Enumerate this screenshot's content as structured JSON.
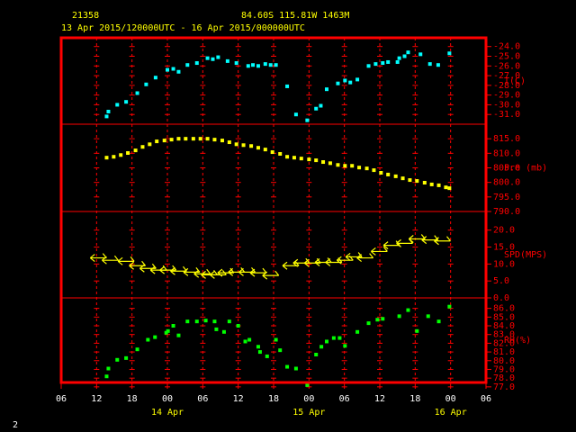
{
  "header": {
    "station": "21358",
    "location": "84.60S  115.81W  1463M",
    "period": "13 Apr 2015/120000UTC - 16 Apr 2015/000000UTC",
    "page": "2"
  },
  "x_axis": {
    "xlim": [
      0,
      72
    ],
    "xticks": [
      {
        "value": 0,
        "label": "06"
      },
      {
        "value": 6,
        "label": "12"
      },
      {
        "value": 12,
        "label": "18"
      },
      {
        "value": 18,
        "label": "00"
      },
      {
        "value": 24,
        "label": "06"
      },
      {
        "value": 30,
        "label": "12"
      },
      {
        "value": 36,
        "label": "18"
      },
      {
        "value": 42,
        "label": "00"
      },
      {
        "value": 48,
        "label": "06"
      },
      {
        "value": 54,
        "label": "12"
      },
      {
        "value": 60,
        "label": "18"
      },
      {
        "value": 66,
        "label": "00"
      },
      {
        "value": 72,
        "label": "06"
      }
    ],
    "date_labels": [
      {
        "value": 18,
        "label": "14 Apr"
      },
      {
        "value": 42,
        "label": "15 Apr"
      },
      {
        "value": 66,
        "label": "16 Apr"
      }
    ]
  },
  "chart_data": [
    {
      "type": "scatter",
      "ylabel": "T(C)",
      "color": "#00ffff",
      "ylim": [
        -32,
        -23.1
      ],
      "yticks": [
        {
          "value": -24,
          "label": "-24.0"
        },
        {
          "value": -25,
          "label": "-25.0"
        },
        {
          "value": -26,
          "label": "-26.0"
        },
        {
          "value": -27,
          "label": "-27.0"
        },
        {
          "value": -28,
          "label": "-28.0"
        },
        {
          "value": -29,
          "label": "-29.0"
        },
        {
          "value": -30,
          "label": "-30.0"
        },
        {
          "value": -31,
          "label": "-31.0"
        }
      ],
      "x": [
        7.7,
        8.0,
        9.5,
        11.0,
        12.9,
        14.4,
        16.0,
        18.0,
        19.0,
        19.9,
        21.4,
        23.0,
        24.8,
        25.7,
        26.6,
        28.2,
        29.7,
        31.7,
        32.5,
        33.4,
        34.6,
        35.5,
        36.4,
        38.3,
        39.8,
        41.7,
        43.2,
        44.0,
        45.0,
        46.9,
        48.1,
        49.0,
        50.2,
        52.1,
        53.3,
        54.5,
        55.4,
        57.0,
        57.3,
        58.2,
        58.8,
        60.9,
        62.5,
        63.9,
        65.8
      ],
      "values": [
        -31.2,
        -30.7,
        -30.0,
        -29.7,
        -28.8,
        -27.9,
        -27.2,
        -26.4,
        -26.3,
        -26.6,
        -25.9,
        -25.7,
        -25.2,
        -25.3,
        -25.1,
        -25.5,
        -25.7,
        -26.0,
        -25.9,
        -26.0,
        -25.8,
        -25.9,
        -25.9,
        -28.1,
        -31.0,
        -31.6,
        -30.4,
        -30.1,
        -28.4,
        -27.8,
        -27.5,
        -27.7,
        -27.4,
        -26.0,
        -25.8,
        -25.7,
        -25.6,
        -25.6,
        -25.2,
        -25.0,
        -24.6,
        -24.8,
        -25.8,
        -25.9,
        -24.7
      ]
    },
    {
      "type": "scatter",
      "ylabel": "Pre (mb)",
      "color": "#ffff00",
      "ylim": [
        790,
        820
      ],
      "yticks": [
        {
          "value": 790,
          "label": "790.0"
        },
        {
          "value": 795,
          "label": "795.0"
        },
        {
          "value": 800,
          "label": "800.0"
        },
        {
          "value": 805,
          "label": "805.0"
        },
        {
          "value": 810,
          "label": "810.0"
        },
        {
          "value": 815,
          "label": "815.0"
        }
      ],
      "x": [
        7.7,
        8.9,
        10.1,
        11.3,
        12.6,
        13.8,
        15.0,
        16.2,
        17.5,
        18.7,
        19.9,
        21.1,
        22.4,
        23.6,
        24.8,
        26.0,
        27.3,
        28.5,
        29.7,
        30.9,
        32.2,
        33.4,
        34.6,
        35.8,
        37.1,
        38.3,
        39.5,
        40.7,
        42.0,
        43.2,
        44.4,
        45.6,
        46.9,
        48.1,
        49.3,
        50.5,
        51.8,
        53.0,
        54.2,
        55.4,
        56.7,
        57.9,
        59.1,
        60.3,
        61.6,
        62.8,
        64.0,
        65.2,
        65.8
      ],
      "values": [
        808.5,
        808.8,
        809.4,
        810.1,
        811.0,
        812.2,
        813.1,
        814.1,
        814.4,
        814.7,
        815.0,
        815.0,
        815.0,
        815.0,
        815.0,
        814.7,
        814.4,
        813.8,
        813.1,
        812.8,
        812.5,
        811.9,
        811.3,
        810.4,
        809.8,
        808.8,
        808.5,
        808.2,
        807.9,
        807.6,
        807.0,
        806.6,
        806.0,
        805.7,
        805.7,
        805.1,
        804.8,
        804.2,
        803.3,
        802.7,
        802.1,
        801.4,
        800.8,
        800.5,
        799.9,
        799.3,
        799.0,
        798.3,
        798.0
      ]
    },
    {
      "type": "barb",
      "ylabel": "SPD(MPS)",
      "color": "#ffff00",
      "ylim": [
        0,
        25.5
      ],
      "yticks": [
        {
          "value": 0,
          "label": "0.0"
        },
        {
          "value": 5,
          "label": "5.0"
        },
        {
          "value": 10,
          "label": "10.0"
        },
        {
          "value": 15,
          "label": "15.0"
        },
        {
          "value": 20,
          "label": "20.0"
        }
      ],
      "x": [
        6.3,
        8.3,
        11.0,
        12.9,
        14.7,
        16.5,
        18.1,
        19.9,
        22.1,
        23.9,
        25.1,
        26.6,
        27.9,
        29.7,
        31.5,
        33.4,
        35.5,
        38.9,
        40.7,
        42.6,
        44.4,
        46.2,
        48.1,
        49.6,
        51.5,
        53.9,
        56.0,
        58.2,
        60.3,
        62.5,
        64.6
      ],
      "values": [
        11.8,
        11.1,
        10.8,
        9.5,
        8.7,
        8.2,
        8.2,
        7.9,
        7.6,
        7.1,
        6.8,
        6.8,
        7.4,
        7.6,
        7.6,
        7.4,
        6.6,
        9.5,
        10.3,
        10.3,
        10.5,
        10.5,
        11.1,
        12.1,
        11.8,
        13.7,
        15.5,
        16.1,
        17.4,
        17.1,
        16.8
      ]
    },
    {
      "type": "scatter",
      "ylabel": "RH(%)",
      "color": "#00ff00",
      "ylim": [
        77.5,
        87.2
      ],
      "yticks": [
        {
          "value": 77,
          "label": "77.0"
        },
        {
          "value": 78,
          "label": "78.0"
        },
        {
          "value": 79,
          "label": "79.0"
        },
        {
          "value": 80,
          "label": "80.0"
        },
        {
          "value": 81,
          "label": "81.0"
        },
        {
          "value": 82,
          "label": "82.0"
        },
        {
          "value": 83,
          "label": "83.0"
        },
        {
          "value": 84,
          "label": "84.0"
        },
        {
          "value": 85,
          "label": "85.0"
        },
        {
          "value": 86,
          "label": "86.0"
        }
      ],
      "x": [
        7.7,
        8.0,
        9.5,
        11.0,
        12.9,
        14.7,
        15.9,
        17.8,
        18.1,
        19.0,
        19.9,
        21.4,
        23.0,
        24.5,
        26.0,
        26.3,
        27.6,
        28.5,
        30.0,
        31.2,
        31.9,
        33.4,
        33.7,
        34.9,
        36.4,
        37.1,
        38.3,
        39.8,
        41.7,
        43.2,
        44.1,
        45.0,
        46.2,
        47.2,
        48.1,
        50.2,
        52.1,
        53.6,
        54.5,
        57.3,
        58.8,
        60.3,
        62.2,
        64.0,
        65.8
      ],
      "values": [
        78.2,
        79.1,
        80.1,
        80.3,
        81.3,
        82.4,
        82.7,
        83.2,
        83.4,
        84.0,
        82.9,
        84.5,
        84.5,
        84.6,
        84.5,
        83.6,
        83.3,
        84.5,
        84.0,
        82.2,
        82.4,
        81.6,
        81.0,
        80.5,
        82.4,
        81.2,
        79.3,
        79.1,
        77.2,
        80.7,
        81.6,
        82.2,
        82.6,
        82.6,
        81.7,
        83.3,
        84.3,
        84.7,
        84.8,
        85.1,
        85.8,
        83.4,
        85.1,
        84.5,
        86.2
      ]
    }
  ]
}
